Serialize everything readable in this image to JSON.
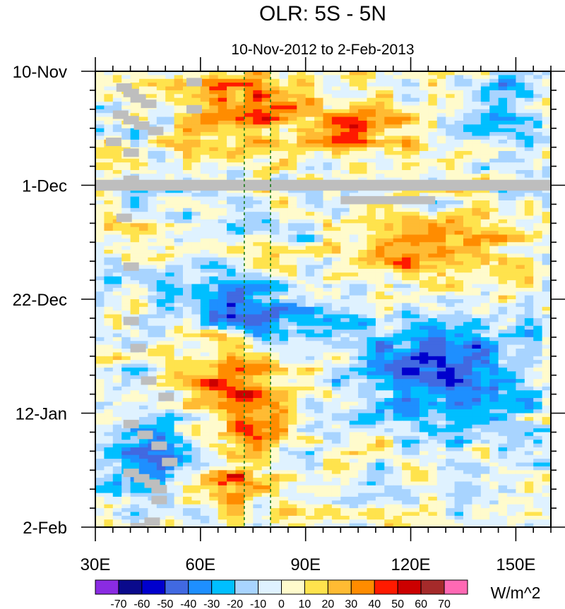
{
  "chart_data": {
    "type": "heatmap",
    "title": "OLR: 5S - 5N",
    "subtitle": "10-Nov-2012 to 2-Feb-2013",
    "x_axis": {
      "label": "",
      "range": [
        30,
        160
      ],
      "ticks": [
        {
          "value": 30,
          "label": "30E"
        },
        {
          "value": 60,
          "label": "60E"
        },
        {
          "value": 90,
          "label": "90E"
        },
        {
          "value": 120,
          "label": "120E"
        },
        {
          "value": 150,
          "label": "150E"
        }
      ]
    },
    "y_axis": {
      "label": "",
      "range_days": [
        0,
        84
      ],
      "reversed": true,
      "ticks": [
        {
          "day": 0,
          "label": "10-Nov"
        },
        {
          "day": 21,
          "label": "1-Dec"
        },
        {
          "day": 42,
          "label": "22-Dec"
        },
        {
          "day": 63,
          "label": "12-Jan"
        },
        {
          "day": 84,
          "label": "2-Feb"
        }
      ]
    },
    "reference_lines_lon": [
      72.5,
      80
    ],
    "missing_data": [
      {
        "day_start": 20,
        "day_end": 22,
        "lon_start": 30,
        "lon_end": 160
      },
      {
        "day_start": 23,
        "day_end": 24.5,
        "lon_start": 100,
        "lon_end": 127
      }
    ],
    "colorbar": {
      "units": "W/m^2",
      "levels": [
        -70,
        -60,
        -50,
        -40,
        -30,
        -20,
        -10,
        0,
        10,
        20,
        30,
        40,
        50,
        60,
        70
      ],
      "colors": [
        "#8a2be2",
        "#0a0a8c",
        "#0000cd",
        "#4169e1",
        "#1e8fff",
        "#00bfff",
        "#a8d4ff",
        "#dff2ff",
        "#fffbcc",
        "#ffe34d",
        "#ffbb33",
        "#ff8c00",
        "#ff1a00",
        "#cc0000",
        "#a52a2a",
        "#ff69b4"
      ]
    },
    "anomaly_field": {
      "start_day": 0,
      "end_day": 84,
      "lon_start": 30,
      "lon_end": 160,
      "description_note": "hovmoller anomaly pattern"
    }
  }
}
